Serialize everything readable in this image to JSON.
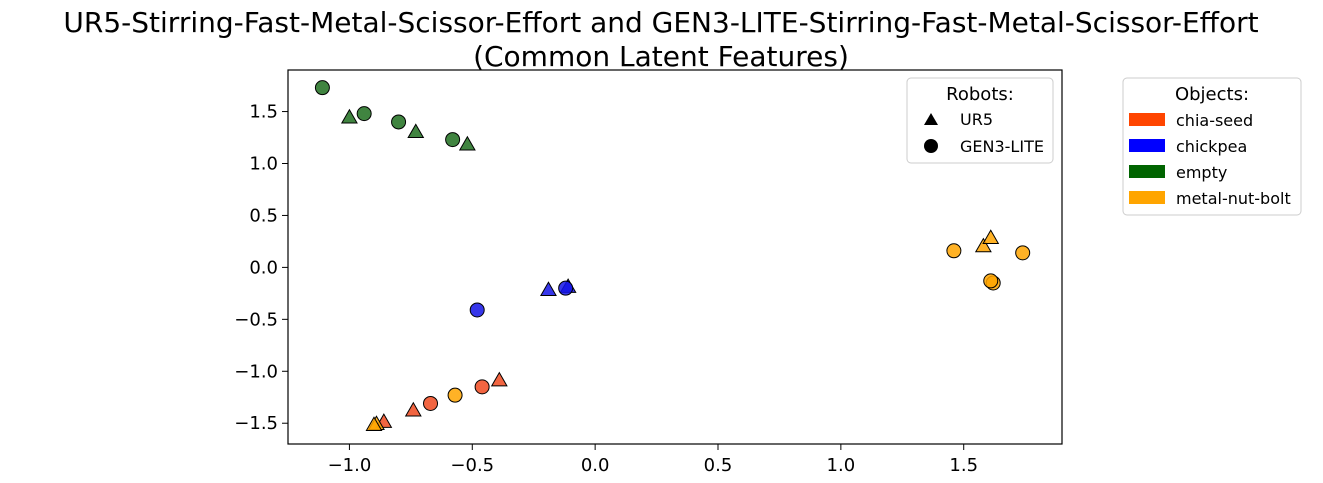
{
  "chart_data": {
    "type": "scatter",
    "title_line1": "UR5-Stirring-Fast-Metal-Scissor-Effort and GEN3-LITE-Stirring-Fast-Metal-Scissor-Effort",
    "title_line2": "(Common Latent Features)",
    "xlim": [
      -1.25,
      1.9
    ],
    "ylim": [
      -1.7,
      1.9
    ],
    "xticks": [
      -1.0,
      -0.5,
      0.0,
      0.5,
      1.0,
      1.5
    ],
    "xtick_labels": [
      "−1.0",
      "−0.5",
      "0.0",
      "0.5",
      "1.0",
      "1.5"
    ],
    "yticks": [
      -1.5,
      -1.0,
      -0.5,
      0.0,
      0.5,
      1.0,
      1.5
    ],
    "ytick_labels": [
      "−1.5",
      "−1.0",
      "−0.5",
      "0.0",
      "0.5",
      "1.0",
      "1.5"
    ],
    "grid": false,
    "robots_legend": {
      "title": "Robots:",
      "placement": "upper-right inside axes",
      "entries": [
        {
          "label": "UR5",
          "marker": "triangle"
        },
        {
          "label": "GEN3-LITE",
          "marker": "circle"
        }
      ]
    },
    "objects_legend": {
      "title": "Objects:",
      "placement": "outside right",
      "entries": [
        {
          "label": "chia-seed",
          "color": "#FF4500"
        },
        {
          "label": "chickpea",
          "color": "#0000FF"
        },
        {
          "label": "empty",
          "color": "#006400"
        },
        {
          "label": "metal-nut-bolt",
          "color": "#FFA500"
        }
      ]
    },
    "point_colors": {
      "chia-seed": "#F04A20",
      "chickpea": "#1414E6",
      "empty": "#1E6E1E",
      "metal-nut-bolt": "#FFA500"
    },
    "points": [
      {
        "robot": "GEN3-LITE",
        "object": "empty",
        "x": -1.11,
        "y": 1.73
      },
      {
        "robot": "UR5",
        "object": "empty",
        "x": -1.0,
        "y": 1.44
      },
      {
        "robot": "GEN3-LITE",
        "object": "empty",
        "x": -0.94,
        "y": 1.48
      },
      {
        "robot": "GEN3-LITE",
        "object": "empty",
        "x": -0.8,
        "y": 1.4
      },
      {
        "robot": "UR5",
        "object": "empty",
        "x": -0.73,
        "y": 1.3
      },
      {
        "robot": "GEN3-LITE",
        "object": "empty",
        "x": -0.58,
        "y": 1.23
      },
      {
        "robot": "UR5",
        "object": "empty",
        "x": -0.52,
        "y": 1.18
      },
      {
        "robot": "GEN3-LITE",
        "object": "chickpea",
        "x": -0.48,
        "y": -0.41
      },
      {
        "robot": "UR5",
        "object": "chickpea",
        "x": -0.19,
        "y": -0.22
      },
      {
        "robot": "UR5",
        "object": "chickpea",
        "x": -0.11,
        "y": -0.19
      },
      {
        "robot": "GEN3-LITE",
        "object": "chickpea",
        "x": -0.12,
        "y": -0.2
      },
      {
        "robot": "GEN3-LITE",
        "object": "metal-nut-bolt",
        "x": 1.46,
        "y": 0.16
      },
      {
        "robot": "UR5",
        "object": "metal-nut-bolt",
        "x": 1.58,
        "y": 0.2
      },
      {
        "robot": "UR5",
        "object": "metal-nut-bolt",
        "x": 1.61,
        "y": 0.28
      },
      {
        "robot": "GEN3-LITE",
        "object": "metal-nut-bolt",
        "x": 1.62,
        "y": -0.15
      },
      {
        "robot": "GEN3-LITE",
        "object": "metal-nut-bolt",
        "x": 1.61,
        "y": -0.13
      },
      {
        "robot": "GEN3-LITE",
        "object": "metal-nut-bolt",
        "x": 1.74,
        "y": 0.14
      },
      {
        "robot": "UR5",
        "object": "chia-seed",
        "x": -0.39,
        "y": -1.09
      },
      {
        "robot": "GEN3-LITE",
        "object": "chia-seed",
        "x": -0.46,
        "y": -1.15
      },
      {
        "robot": "GEN3-LITE",
        "object": "metal-nut-bolt",
        "x": -0.57,
        "y": -1.23
      },
      {
        "robot": "GEN3-LITE",
        "object": "chia-seed",
        "x": -0.67,
        "y": -1.31
      },
      {
        "robot": "UR5",
        "object": "chia-seed",
        "x": -0.74,
        "y": -1.38
      },
      {
        "robot": "UR5",
        "object": "chia-seed",
        "x": -0.86,
        "y": -1.49
      },
      {
        "robot": "UR5",
        "object": "metal-nut-bolt",
        "x": -0.89,
        "y": -1.51
      },
      {
        "robot": "UR5",
        "object": "metal-nut-bolt",
        "x": -0.9,
        "y": -1.52
      }
    ]
  }
}
